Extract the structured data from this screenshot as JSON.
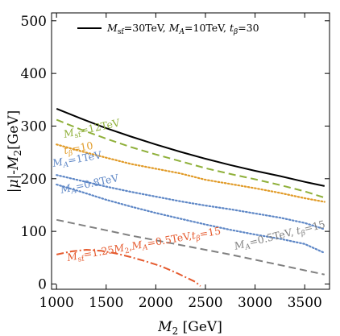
{
  "chart_data": {
    "type": "line",
    "xlabel": "M2 [GeV]",
    "ylabel": "|μ|-M2[GeV]",
    "xlim": [
      950,
      3750
    ],
    "ylim": [
      -10,
      515
    ],
    "xticks": [
      1000,
      1500,
      2000,
      2500,
      3000,
      3500
    ],
    "yticks": [
      0,
      100,
      200,
      300,
      400,
      500
    ],
    "grid": false,
    "legend": "top-left",
    "legend_label": "M_sf=30TeV, M_A=10TeV, t_β=30",
    "series": [
      {
        "name": "M_sf=30TeV, M_A=10TeV, t_β=30",
        "style": "solid",
        "color": "#000000",
        "x": [
          1000,
          1250,
          1500,
          1750,
          2000,
          2250,
          2500,
          2750,
          3000,
          3250,
          3500,
          3700
        ],
        "y": [
          333,
          314,
          296,
          280,
          265,
          251,
          238,
          226,
          215,
          205,
          194,
          186
        ]
      },
      {
        "name": "M_sf=12TeV",
        "style": "dashed",
        "color": "#8fb03a",
        "x": [
          1000,
          1250,
          1500,
          1750,
          2000,
          2250,
          2500,
          2750,
          3000,
          3250,
          3500,
          3700
        ],
        "y": [
          312,
          293,
          276,
          260,
          246,
          233,
          220,
          209,
          199,
          188,
          176,
          164
        ]
      },
      {
        "name": "t_β=10",
        "style": "dotted",
        "color": "#e19b28",
        "x": [
          1000,
          1250,
          1500,
          1750,
          2000,
          2250,
          2500,
          2750,
          3000,
          3250,
          3500,
          3700
        ],
        "y": [
          265,
          252,
          240,
          228,
          219,
          210,
          198,
          190,
          182,
          173,
          163,
          156
        ]
      },
      {
        "name": "M_A=1TeV",
        "style": "dotted",
        "color": "#5e87c6",
        "x": [
          1000,
          1250,
          1500,
          1750,
          2000,
          2250,
          2500,
          2750,
          3000,
          3250,
          3500,
          3700
        ],
        "y": [
          207,
          196,
          185,
          175,
          166,
          157,
          149,
          142,
          134,
          126,
          116,
          104
        ]
      },
      {
        "name": "M_A=0.8TeV",
        "style": "dotted",
        "color": "#5e87c6",
        "x": [
          1000,
          1250,
          1500,
          1750,
          2000,
          2250,
          2500,
          2750,
          3000,
          3250,
          3500,
          3700
        ],
        "y": [
          189,
          175,
          160,
          147,
          135,
          124,
          113,
          103,
          94,
          86,
          76,
          59
        ]
      },
      {
        "name": "M_A=0.5TeV, t_β=15",
        "style": "dashed",
        "color": "#808080",
        "x": [
          1000,
          1250,
          1500,
          1750,
          2000,
          2250,
          2500,
          2750,
          3000,
          3250,
          3500,
          3700
        ],
        "y": [
          122,
          112,
          102,
          92,
          83,
          74,
          65,
          56,
          46,
          36,
          26,
          18
        ]
      },
      {
        "name": "M_sf=1.25M_2, M_A=0.5TeV, t_β=15",
        "style": "dashdot",
        "color": "#e55a2e",
        "x": [
          1000,
          1150,
          1300,
          1450,
          1600,
          1750,
          1900,
          2050,
          2200,
          2300,
          2400,
          2450
        ],
        "y": [
          56,
          62,
          65,
          63,
          58,
          51,
          43,
          34,
          22,
          13,
          4,
          -4
        ]
      }
    ],
    "annotations": [
      {
        "label": "M_sf=12TeV",
        "color": "#8fb03a"
      },
      {
        "label": "t_β=10",
        "color": "#e19b28"
      },
      {
        "label": "M_A=1TeV",
        "color": "#5e87c6"
      },
      {
        "label": "M_A=0.8TeV",
        "color": "#5e87c6"
      },
      {
        "label": "M_A=0.5TeV, t_β=15",
        "color": "#808080"
      },
      {
        "label": "M_sf=1.25M_2,M_A=0.5TeV,t_β=15",
        "color": "#e55a2e"
      }
    ]
  }
}
